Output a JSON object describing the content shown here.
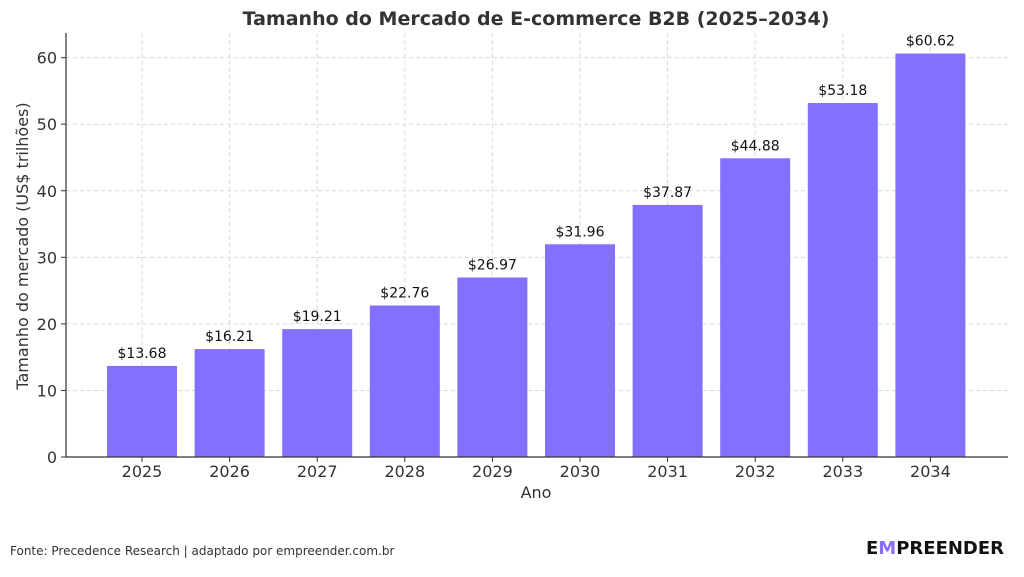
{
  "chart_data": {
    "type": "bar",
    "title": "Tamanho do Mercado de E-commerce B2B (2025–2034)",
    "xlabel": "Ano",
    "ylabel": "Tamanho do mercado (US$ trilhões)",
    "categories": [
      "2025",
      "2026",
      "2027",
      "2028",
      "2029",
      "2030",
      "2031",
      "2032",
      "2033",
      "2034"
    ],
    "values": [
      13.68,
      16.21,
      19.21,
      22.76,
      26.97,
      31.96,
      37.87,
      44.88,
      53.18,
      60.62
    ],
    "data_labels": [
      "$13.68",
      "$16.21",
      "$19.21",
      "$22.76",
      "$26.97",
      "$31.96",
      "$37.87",
      "$44.88",
      "$53.18",
      "$60.62"
    ],
    "ylim": [
      0,
      63.7
    ],
    "yticks": [
      0,
      10,
      20,
      30,
      40,
      50,
      60
    ],
    "grid": true,
    "bar_color": "#8470ff"
  },
  "footer": {
    "source": "Fonte: Precedence Research | adaptado por empreender.com.br",
    "logo_first": "E",
    "logo_accent": "M",
    "logo_rest": "PREENDER",
    "accent_color": "#8a6cff"
  }
}
